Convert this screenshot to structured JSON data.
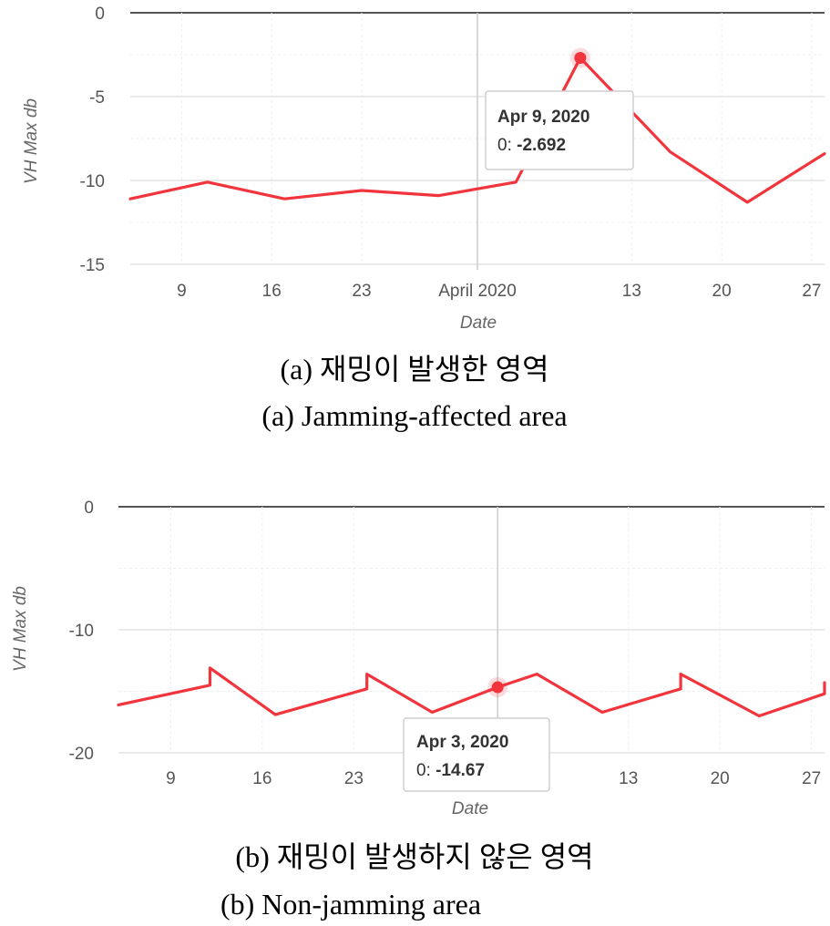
{
  "chart_data": [
    {
      "type": "line",
      "x_range": [
        "2020-03-05",
        "2020-04-28"
      ],
      "ylim": [
        -15,
        0
      ],
      "y_ticks": [
        0,
        -5,
        -10,
        -15
      ],
      "x_ticks": [
        {
          "date": "2020-03-09",
          "label": "9"
        },
        {
          "date": "2020-03-16",
          "label": "16"
        },
        {
          "date": "2020-03-23",
          "label": "23"
        },
        {
          "date": "2020-04-01",
          "label": "April 2020"
        },
        {
          "date": "2020-04-13",
          "label": "13"
        },
        {
          "date": "2020-04-20",
          "label": "20"
        },
        {
          "date": "2020-04-27",
          "label": "27"
        }
      ],
      "xlabel": "Date",
      "ylabel": "VH Max db",
      "grid": true,
      "line_color": "#f2343c",
      "series": [
        {
          "points": [
            {
              "x": "2020-03-05",
              "y": -11.1
            },
            {
              "x": "2020-03-11",
              "y": -10.1
            },
            {
              "x": "2020-03-17",
              "y": -11.1
            },
            {
              "x": "2020-03-23",
              "y": -10.6
            },
            {
              "x": "2020-03-29",
              "y": -10.9
            },
            {
              "x": "2020-04-04",
              "y": -10.1
            },
            {
              "x": "2020-04-09",
              "y": -2.692
            },
            {
              "x": "2020-04-16",
              "y": -8.3
            },
            {
              "x": "2020-04-22",
              "y": -11.3
            },
            {
              "x": "2020-04-28",
              "y": -8.4
            }
          ]
        }
      ],
      "tooltip": {
        "date": "Apr 9, 2020",
        "label": "0:",
        "value": "-2.692",
        "x": "2020-04-09",
        "y": -2.692
      },
      "caption_ko": "(a)  재밍이  발생한  영역",
      "caption_en": "(a)  Jamming-affected  area"
    },
    {
      "type": "line",
      "x_range": [
        "2020-03-05",
        "2020-04-28"
      ],
      "ylim": [
        -20,
        0
      ],
      "y_ticks": [
        0,
        -10,
        -20
      ],
      "x_ticks": [
        {
          "date": "2020-03-09",
          "label": "9"
        },
        {
          "date": "2020-03-16",
          "label": "16"
        },
        {
          "date": "2020-03-23",
          "label": "23"
        },
        {
          "date": "2020-04-13",
          "label": "13"
        },
        {
          "date": "2020-04-20",
          "label": "20"
        },
        {
          "date": "2020-04-27",
          "label": "27"
        }
      ],
      "xlabel": "Date",
      "ylabel": "VH Max db",
      "grid": true,
      "line_color": "#f2343c",
      "series": [
        {
          "points": [
            {
              "x": "2020-03-05",
              "y": -16.1
            },
            {
              "x": "2020-03-12",
              "y": -14.5
            },
            {
              "x": "2020-03-12",
              "y": -13.1
            },
            {
              "x": "2020-03-17",
              "y": -16.9
            },
            {
              "x": "2020-03-24",
              "y": -14.8
            },
            {
              "x": "2020-03-24",
              "y": -13.6
            },
            {
              "x": "2020-03-29",
              "y": -16.7
            },
            {
              "x": "2020-04-03",
              "y": -14.67
            },
            {
              "x": "2020-04-06",
              "y": -13.6
            },
            {
              "x": "2020-04-11",
              "y": -16.7
            },
            {
              "x": "2020-04-17",
              "y": -14.8
            },
            {
              "x": "2020-04-17",
              "y": -13.6
            },
            {
              "x": "2020-04-23",
              "y": -17.0
            },
            {
              "x": "2020-04-28",
              "y": -15.2
            },
            {
              "x": "2020-04-28",
              "y": -14.3
            }
          ]
        }
      ],
      "tooltip": {
        "date": "Apr 3, 2020",
        "label": "0:",
        "value": "-14.67",
        "x": "2020-04-03",
        "y": -14.67
      },
      "caption_ko": "(b)  재밍이  발생하지  않은  영역",
      "caption_en": "(b)  Non-jamming  area"
    }
  ]
}
